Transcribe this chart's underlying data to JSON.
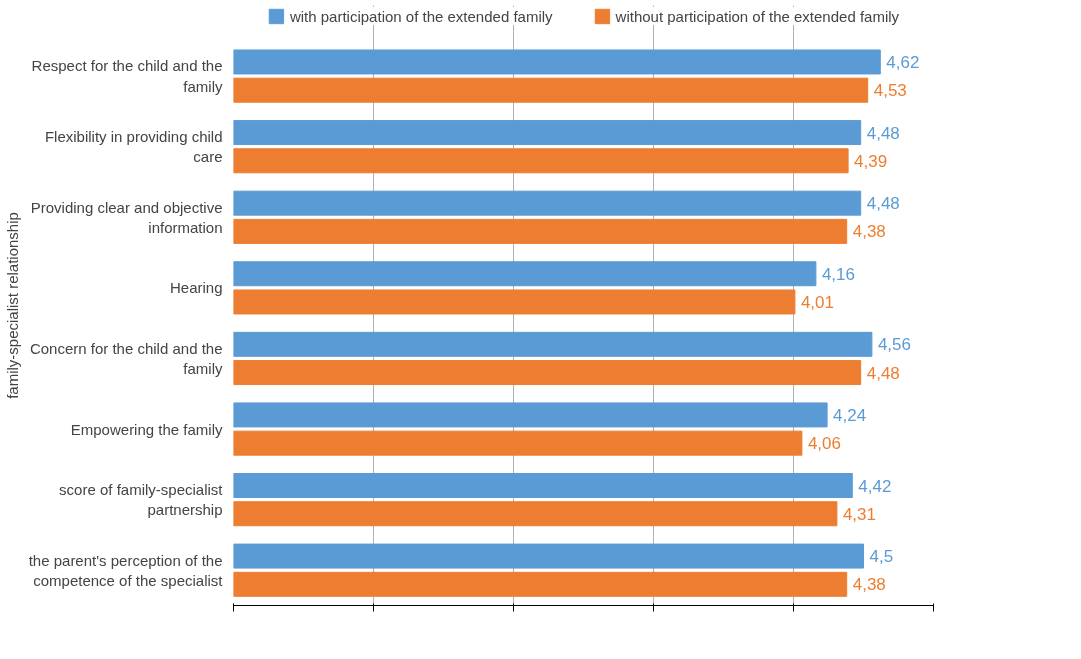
{
  "chart_data": {
    "type": "bar",
    "orientation": "horizontal",
    "ylabel": "family-specialist relationship",
    "categories": [
      "Respect for the child and the family",
      "Flexibility in providing child care",
      "Providing clear and objective information",
      "Hearing",
      "Concern for the child and the family",
      "Empowering the family",
      "score of family-specialist partnership",
      "the parent's perception of the competence of the specialist"
    ],
    "series": [
      {
        "name": "with participation of the extended family",
        "color": "#5b9bd5",
        "values": [
          4.62,
          4.48,
          4.48,
          4.16,
          4.56,
          4.24,
          4.42,
          4.5
        ],
        "value_labels": [
          "4,62",
          "4,48",
          "4,48",
          "4,16",
          "4,56",
          "4,24",
          "4,42",
          "4,5"
        ]
      },
      {
        "name": "without participation of the extended family",
        "color": "#ed7d31",
        "values": [
          4.53,
          4.39,
          4.38,
          4.01,
          4.48,
          4.06,
          4.31,
          4.38
        ],
        "value_labels": [
          "4,53",
          "4,39",
          "4,38",
          "4,01",
          "4,48",
          "4,06",
          "4,31",
          "4,38"
        ]
      }
    ],
    "xlim": [
      0,
      5
    ],
    "xticks": [
      {
        "value": 0,
        "label": null
      },
      {
        "value": 1,
        "label": null
      },
      {
        "value": 2,
        "label": null
      },
      {
        "value": 3,
        "label": null
      },
      {
        "value": 4,
        "label": null
      },
      {
        "value": 5,
        "label": null
      }
    ],
    "tick_labels": "y",
    "grid": "x",
    "legend": "top"
  }
}
